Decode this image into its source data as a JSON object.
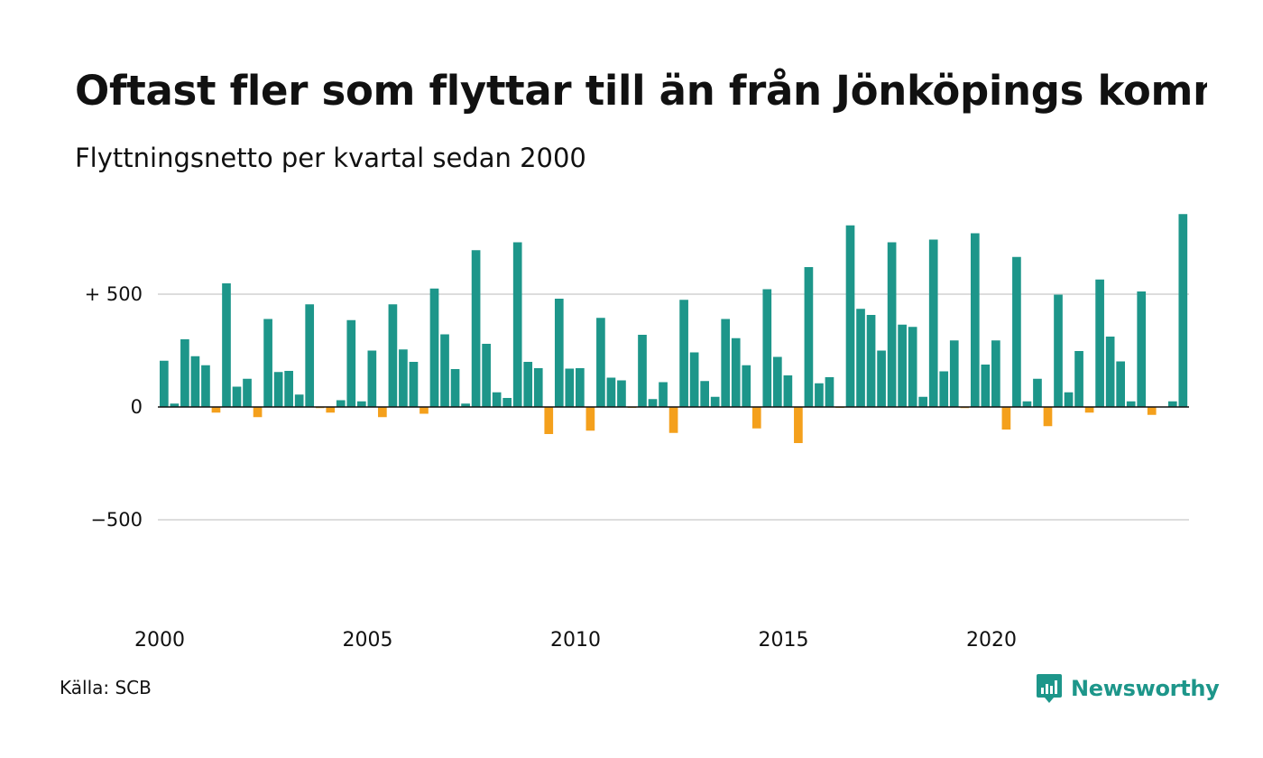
{
  "title": "Oftast fler som flyttar till än från Jönköpings kommun",
  "subtitle": "Flyttningsnetto per kvartal sedan 2000",
  "source": "Källa: SCB",
  "brand": "Newsworthy",
  "colors": {
    "positive": "#1d968a",
    "negative": "#f4a01c",
    "grid": "#dddddd",
    "brand": "#1d968a"
  },
  "chart_data": {
    "type": "bar",
    "title": "Oftast fler som flyttar till än från Jönköpings kommun",
    "subtitle": "Flyttningsnetto per kvartal sedan 2000",
    "xlabel": "",
    "ylabel": "",
    "ylim": [
      -920,
      870
    ],
    "grid": true,
    "x_ticks": [
      "2000",
      "2005",
      "2010",
      "2015",
      "2020"
    ],
    "y_ticks": [
      {
        "value": 500,
        "label": "+ 500"
      },
      {
        "value": 0,
        "label": "0"
      },
      {
        "value": -500,
        "label": "−500"
      }
    ],
    "values": [
      205,
      15,
      300,
      225,
      185,
      -25,
      548,
      90,
      125,
      -45,
      390,
      155,
      160,
      55,
      455,
      -5,
      -25,
      30,
      385,
      25,
      250,
      -45,
      455,
      255,
      200,
      -30,
      525,
      322,
      168,
      15,
      695,
      280,
      65,
      40,
      730,
      200,
      172,
      -120,
      480,
      170,
      172,
      -105,
      395,
      130,
      118,
      -3,
      320,
      35,
      110,
      -115,
      475,
      242,
      115,
      45,
      390,
      305,
      185,
      -95,
      522,
      222,
      140,
      -160,
      620,
      105,
      132,
      -3,
      805,
      435,
      408,
      250,
      730,
      365,
      355,
      45,
      742,
      158,
      295,
      -5,
      770,
      188,
      295,
      -100,
      665,
      25,
      125,
      -85,
      498,
      65,
      248,
      -25,
      565,
      312,
      202,
      25,
      512,
      -35,
      0,
      25,
      855
    ]
  }
}
